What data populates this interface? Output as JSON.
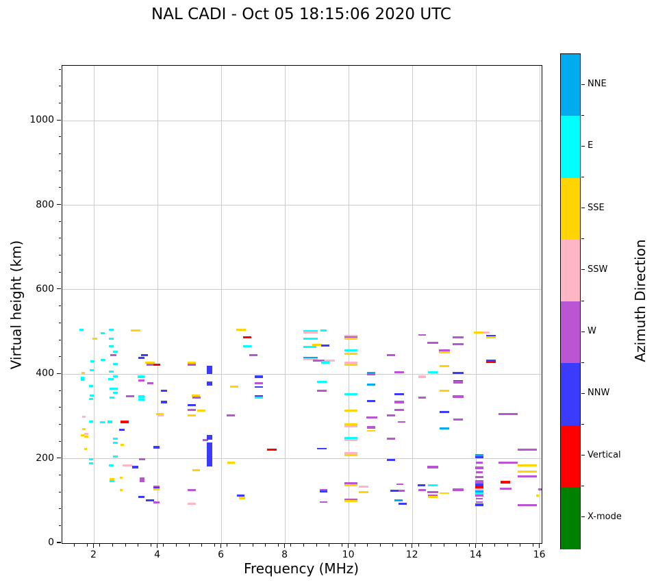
{
  "header": {
    "title": "NAL CADI - Oct 05 18:15:06 2020 UTC"
  },
  "chart_data": {
    "type": "scatter",
    "title": "NAL CADI - Oct 05 18:15:06 2020 UTC",
    "xlabel": "Frequency (MHz)",
    "ylabel": "Virtual height (km)",
    "xlim": [
      1,
      16.05
    ],
    "ylim": [
      0,
      1130
    ],
    "x_ticks": [
      2,
      4,
      6,
      8,
      10,
      12,
      14,
      16
    ],
    "x_minor_step": 0.4,
    "y_ticks": [
      0,
      200,
      400,
      600,
      800,
      1000
    ],
    "y_minor_step": 40,
    "grid": true,
    "grid_color": "#cccccc",
    "axis_color": "#000000",
    "plot_bg": "#ffffff",
    "colorbar": {
      "label": "Azimuth Direction",
      "position": "right",
      "order_top_to_bottom": [
        "NNE",
        "E",
        "SSE",
        "SSW",
        "W",
        "NNW",
        "Vertical",
        "X-mode"
      ],
      "categories": [
        {
          "code": "NNE",
          "label": "NNE",
          "color": "#00ACEE"
        },
        {
          "code": "E",
          "label": "E",
          "color": "#00FFFF"
        },
        {
          "code": "SSE",
          "label": "SSE",
          "color": "#FFD400"
        },
        {
          "code": "SSW",
          "label": "SSW",
          "color": "#FFB6C4"
        },
        {
          "code": "W",
          "label": "W",
          "color": "#BA55D3"
        },
        {
          "code": "NNW",
          "label": "NNW",
          "color": "#3B3BFB"
        },
        {
          "code": "V",
          "label": "Vertical",
          "color": "#FF0000"
        },
        {
          "code": "X",
          "label": "X-mode",
          "color": "#008000"
        }
      ]
    },
    "points_format": [
      "freq_MHz",
      "virtual_height_km",
      "azimuth_code",
      "width_MHz_optional",
      "thickness_km_optional"
    ],
    "points": [
      [
        1.6,
        505,
        "E",
        0.12
      ],
      [
        1.66,
        403,
        "SSE",
        0.12
      ],
      [
        1.63,
        392,
        "E",
        0.12
      ],
      [
        1.63,
        387,
        "E",
        0.12
      ],
      [
        1.68,
        299,
        "SSW",
        0.12
      ],
      [
        1.68,
        270,
        "SSE",
        0.12
      ],
      [
        1.63,
        256,
        "SSE",
        0.12
      ],
      [
        1.75,
        259,
        "SSW",
        0.12
      ],
      [
        1.75,
        252,
        "SSE",
        0.12
      ],
      [
        1.73,
        223,
        "SSE",
        0.1
      ],
      [
        2.02,
        484,
        "SSE",
        0.15
      ],
      [
        1.94,
        431,
        "E",
        0.12
      ],
      [
        1.93,
        410,
        "E",
        0.12
      ],
      [
        1.9,
        372,
        "E",
        0.12
      ],
      [
        1.92,
        350,
        "E",
        0.12
      ],
      [
        1.9,
        341,
        "E",
        0.12
      ],
      [
        1.9,
        288,
        "E",
        0.12
      ],
      [
        1.9,
        199,
        "E",
        0.12
      ],
      [
        1.9,
        189,
        "E",
        0.12
      ],
      [
        2.27,
        497,
        "E",
        0.12
      ],
      [
        2.27,
        434,
        "E",
        0.15
      ],
      [
        2.26,
        286,
        "E",
        0.15
      ],
      [
        2.53,
        505,
        "E",
        0.15
      ],
      [
        2.53,
        484,
        "E",
        0.15
      ],
      [
        2.53,
        466,
        "E",
        0.15
      ],
      [
        2.66,
        453,
        "E",
        0.15
      ],
      [
        2.6,
        445,
        "W",
        0.2
      ],
      [
        2.66,
        424,
        "E",
        0.15
      ],
      [
        2.53,
        406,
        "E",
        0.15
      ],
      [
        2.66,
        395,
        "E",
        0.15
      ],
      [
        2.53,
        389,
        "E",
        0.18
      ],
      [
        2.55,
        366,
        "E",
        0.15
      ],
      [
        2.67,
        366,
        "E",
        0.15
      ],
      [
        2.67,
        356,
        "E",
        0.15
      ],
      [
        2.56,
        344,
        "E",
        0.15
      ],
      [
        2.5,
        287,
        "E",
        0.15
      ],
      [
        2.67,
        247,
        "E",
        0.15
      ],
      [
        2.67,
        237,
        "E",
        0.15
      ],
      [
        2.67,
        205,
        "E",
        0.15
      ],
      [
        2.53,
        184,
        "E",
        0.15
      ],
      [
        2.55,
        152,
        "SSE",
        0.15
      ],
      [
        2.55,
        146,
        "E",
        0.15
      ],
      [
        2.88,
        232,
        "SSE",
        0.12
      ],
      [
        2.95,
        287,
        "V",
        0.25
      ],
      [
        2.87,
        269,
        "NNW",
        0.18
      ],
      [
        2.85,
        155,
        "SSE",
        0.1
      ],
      [
        2.85,
        126,
        "SSE",
        0.1
      ],
      [
        3.13,
        348,
        "W",
        0.25
      ],
      [
        3.3,
        503,
        "SSE",
        0.3
      ],
      [
        3.05,
        184,
        "SSW",
        0.3
      ],
      [
        3.29,
        180,
        "NNW",
        0.2
      ],
      [
        3.47,
        394,
        "E",
        0.2
      ],
      [
        3.49,
        385,
        "W",
        0.2
      ],
      [
        3.49,
        347,
        "E",
        0.2
      ],
      [
        3.49,
        340,
        "E",
        0.2
      ],
      [
        3.51,
        198,
        "W",
        0.2
      ],
      [
        3.5,
        150,
        "W",
        0.15,
        10
      ],
      [
        3.49,
        109,
        "NNW",
        0.2
      ],
      [
        3.58,
        445,
        "NNW",
        0.2
      ],
      [
        3.49,
        439,
        "NNW",
        0.2
      ],
      [
        3.76,
        427,
        "SSE",
        0.3
      ],
      [
        3.78,
        423,
        "W",
        0.25
      ],
      [
        3.97,
        423,
        "V",
        0.2
      ],
      [
        3.77,
        379,
        "W",
        0.2
      ],
      [
        3.96,
        227,
        "NNW",
        0.2
      ],
      [
        3.95,
        133,
        "W",
        0.2
      ],
      [
        3.95,
        130,
        "NNW",
        0.2
      ],
      [
        3.95,
        127,
        "SSE",
        0.2
      ],
      [
        3.75,
        101,
        "NNW",
        0.25
      ],
      [
        3.95,
        97,
        "W",
        0.2
      ],
      [
        4.06,
        306,
        "SSE",
        0.25
      ],
      [
        4.09,
        302,
        "SSW",
        0.2
      ],
      [
        4.2,
        361,
        "NNW",
        0.2
      ],
      [
        4.2,
        334,
        "NNW",
        0.2
      ],
      [
        5.06,
        427,
        "SSE",
        0.25
      ],
      [
        5.06,
        423,
        "W",
        0.25
      ],
      [
        5.19,
        350,
        "SSE",
        0.25
      ],
      [
        5.21,
        345,
        "W",
        0.25
      ],
      [
        5.06,
        326,
        "NNW",
        0.25
      ],
      [
        5.06,
        316,
        "W",
        0.25
      ],
      [
        5.36,
        314,
        "SSE",
        0.25
      ],
      [
        5.06,
        302,
        "SSE",
        0.25
      ],
      [
        5.2,
        173,
        "SSE",
        0.25
      ],
      [
        5.06,
        125,
        "W",
        0.25
      ],
      [
        5.06,
        93,
        "SSW",
        0.25
      ],
      [
        5.62,
        410,
        "NNW",
        0.16,
        20
      ],
      [
        5.62,
        378,
        "NNW",
        0.16,
        9
      ],
      [
        5.49,
        244,
        "W",
        0.18
      ],
      [
        5.62,
        251,
        "NNW",
        0.16,
        11
      ],
      [
        5.62,
        210,
        "NNW",
        0.16,
        58
      ],
      [
        6.29,
        302,
        "W",
        0.25
      ],
      [
        6.4,
        371,
        "SSE",
        0.25
      ],
      [
        6.3,
        190,
        "SSE",
        0.25
      ],
      [
        6.61,
        505,
        "SSE",
        0.3
      ],
      [
        6.6,
        112,
        "NNW",
        0.25
      ],
      [
        6.64,
        107,
        "SSE",
        0.2
      ],
      [
        6.81,
        487,
        "V",
        0.25
      ],
      [
        6.81,
        466,
        "E",
        0.25
      ],
      [
        7.0,
        445,
        "W",
        0.25
      ],
      [
        7.17,
        394,
        "NNW",
        0.25
      ],
      [
        7.17,
        379,
        "W",
        0.25
      ],
      [
        7.17,
        369,
        "NNW",
        0.25,
        2.5
      ],
      [
        7.17,
        348,
        "NNW",
        0.25
      ],
      [
        7.17,
        344,
        "E",
        0.25
      ],
      [
        7.58,
        221,
        "V",
        0.3
      ],
      [
        8.8,
        502,
        "E",
        0.45
      ],
      [
        8.8,
        499,
        "SSW",
        0.45
      ],
      [
        8.8,
        484,
        "E",
        0.45
      ],
      [
        9.0,
        470,
        "SSE",
        0.3
      ],
      [
        8.77,
        464,
        "E",
        0.4
      ],
      [
        8.8,
        439,
        "NNE",
        0.45
      ],
      [
        8.8,
        436,
        "SSW",
        0.45
      ],
      [
        9.05,
        432,
        "W",
        0.35
      ],
      [
        9.4,
        432,
        "SSW",
        0.3
      ],
      [
        9.2,
        503,
        "E",
        0.2
      ],
      [
        9.25,
        467,
        "NNW",
        0.25
      ],
      [
        9.25,
        428,
        "E",
        0.25
      ],
      [
        9.15,
        382,
        "E",
        0.3
      ],
      [
        9.15,
        360,
        "W",
        0.3
      ],
      [
        9.15,
        224,
        "NNW",
        0.3,
        2.5
      ],
      [
        9.2,
        126,
        "W",
        0.25
      ],
      [
        9.2,
        122,
        "NNW",
        0.25
      ],
      [
        9.2,
        98,
        "W",
        0.25,
        2.5
      ],
      [
        10.06,
        490,
        "SSW",
        0.4
      ],
      [
        10.06,
        487,
        "W",
        0.4
      ],
      [
        10.06,
        484,
        "SSE",
        0.4
      ],
      [
        10.06,
        456,
        "E",
        0.4
      ],
      [
        10.06,
        449,
        "SSE",
        0.4
      ],
      [
        10.06,
        427,
        "SSW",
        0.4
      ],
      [
        10.06,
        422,
        "SSE",
        0.4
      ],
      [
        10.06,
        352,
        "E",
        0.4
      ],
      [
        10.06,
        313,
        "SSE",
        0.4
      ],
      [
        10.06,
        281,
        "SSE",
        0.4
      ],
      [
        10.06,
        276,
        "SSW",
        0.4
      ],
      [
        10.06,
        248,
        "E",
        0.4
      ],
      [
        10.06,
        244,
        "SSW",
        0.4
      ],
      [
        10.06,
        213,
        "SSW",
        0.4
      ],
      [
        10.06,
        209,
        "SSE",
        0.4
      ],
      [
        10.06,
        141,
        "W",
        0.4
      ],
      [
        10.06,
        137,
        "SSE",
        0.4
      ],
      [
        10.06,
        103,
        "W",
        0.4
      ],
      [
        10.06,
        100,
        "SSE",
        0.4
      ],
      [
        10.45,
        134,
        "SSW",
        0.3
      ],
      [
        10.45,
        121,
        "SSE",
        0.3
      ],
      [
        10.7,
        403,
        "NNE",
        0.25
      ],
      [
        10.7,
        400,
        "W",
        0.25
      ],
      [
        10.7,
        376,
        "NNE",
        0.25
      ],
      [
        10.7,
        337,
        "NNW",
        0.25
      ],
      [
        10.72,
        298,
        "W",
        0.35
      ],
      [
        10.7,
        274,
        "W",
        0.25
      ],
      [
        10.7,
        266,
        "SSE",
        0.25,
        2.5
      ],
      [
        11.32,
        445,
        "W",
        0.25
      ],
      [
        11.58,
        405,
        "W",
        0.3
      ],
      [
        11.58,
        352,
        "NNW",
        0.3
      ],
      [
        11.58,
        334,
        "W",
        0.3
      ],
      [
        11.58,
        315,
        "W",
        0.3
      ],
      [
        11.32,
        302,
        "W",
        0.25
      ],
      [
        11.32,
        247,
        "W",
        0.25
      ],
      [
        11.32,
        197,
        "NNW",
        0.25
      ],
      [
        11.65,
        287,
        "W",
        0.25,
        2.5
      ],
      [
        11.45,
        124,
        "NNW",
        0.3
      ],
      [
        11.66,
        124,
        "W",
        0.2
      ],
      [
        11.6,
        140,
        "W",
        0.2,
        2.5
      ],
      [
        11.55,
        101,
        "NNE",
        0.25
      ],
      [
        11.68,
        93,
        "NNW",
        0.25
      ],
      [
        12.3,
        493,
        "W",
        0.25,
        2.5
      ],
      [
        12.3,
        394,
        "SSW",
        0.25
      ],
      [
        12.3,
        345,
        "W",
        0.25
      ],
      [
        12.28,
        137,
        "NNW",
        0.25
      ],
      [
        12.3,
        125,
        "W",
        0.25
      ],
      [
        12.63,
        474,
        "W",
        0.35
      ],
      [
        12.63,
        405,
        "E",
        0.3
      ],
      [
        12.63,
        180,
        "W",
        0.35
      ],
      [
        12.63,
        137,
        "E",
        0.3
      ],
      [
        12.63,
        121,
        "W",
        0.35
      ],
      [
        12.63,
        113,
        "W",
        0.3
      ],
      [
        12.63,
        109,
        "SSE",
        0.3
      ],
      [
        12.99,
        456,
        "W",
        0.35
      ],
      [
        12.99,
        452,
        "SSE",
        0.35
      ],
      [
        13.0,
        419,
        "SSE",
        0.3
      ],
      [
        12.99,
        361,
        "SSE",
        0.3
      ],
      [
        12.99,
        310,
        "NNW",
        0.3
      ],
      [
        13.0,
        272,
        "NNE",
        0.3
      ],
      [
        12.99,
        119,
        "SSE",
        0.3,
        2.5
      ],
      [
        13.42,
        487,
        "W",
        0.35
      ],
      [
        13.42,
        471,
        "W",
        0.35
      ],
      [
        13.42,
        403,
        "NNW",
        0.35,
        6
      ],
      [
        13.42,
        384,
        "NNW",
        0.3
      ],
      [
        13.42,
        381,
        "W",
        0.3
      ],
      [
        13.42,
        347,
        "W",
        0.35
      ],
      [
        13.42,
        293,
        "W",
        0.3
      ],
      [
        13.42,
        127,
        "W",
        0.35,
        6
      ],
      [
        14.1,
        499,
        "SSE",
        0.35
      ],
      [
        14.32,
        498,
        "SSW",
        0.2
      ],
      [
        14.46,
        490,
        "NNW",
        0.3
      ],
      [
        14.46,
        487,
        "SSE",
        0.3
      ],
      [
        14.46,
        432,
        "NNW",
        0.3
      ],
      [
        14.46,
        429,
        "V",
        0.3
      ],
      [
        14.1,
        209,
        "NNE",
        0.25
      ],
      [
        14.1,
        204,
        "NNW",
        0.25
      ],
      [
        14.1,
        190,
        "W",
        0.22
      ],
      [
        14.1,
        178,
        "W",
        0.25,
        7
      ],
      [
        14.1,
        168,
        "W",
        0.22
      ],
      [
        14.1,
        157,
        "W",
        0.25
      ],
      [
        14.1,
        145,
        "W",
        0.25,
        7
      ],
      [
        14.1,
        139,
        "NNW",
        0.25
      ],
      [
        14.1,
        133,
        "V",
        0.25,
        7
      ],
      [
        14.1,
        128,
        "SSW",
        0.25
      ],
      [
        14.1,
        123,
        "NNE",
        0.25
      ],
      [
        14.1,
        117,
        "E",
        0.25
      ],
      [
        14.1,
        112,
        "W",
        0.25
      ],
      [
        14.1,
        106,
        "W",
        0.22,
        2.5
      ],
      [
        14.1,
        97,
        "W",
        0.22,
        2.5
      ],
      [
        14.1,
        91,
        "NNW",
        0.25,
        6
      ],
      [
        15.0,
        306,
        "W",
        0.6
      ],
      [
        15.0,
        190,
        "W",
        0.6
      ],
      [
        14.92,
        144,
        "V",
        0.3,
        7
      ],
      [
        14.92,
        129,
        "W",
        0.35
      ],
      [
        15.6,
        222,
        "W",
        0.6
      ],
      [
        15.6,
        184,
        "SSE",
        0.6
      ],
      [
        15.6,
        169,
        "SSE",
        0.6
      ],
      [
        15.6,
        158,
        "W",
        0.6
      ],
      [
        15.6,
        90,
        "W",
        0.6
      ],
      [
        15.92,
        112,
        "SSE",
        0.1
      ],
      [
        16.0,
        127,
        "W",
        0.12
      ]
    ]
  }
}
